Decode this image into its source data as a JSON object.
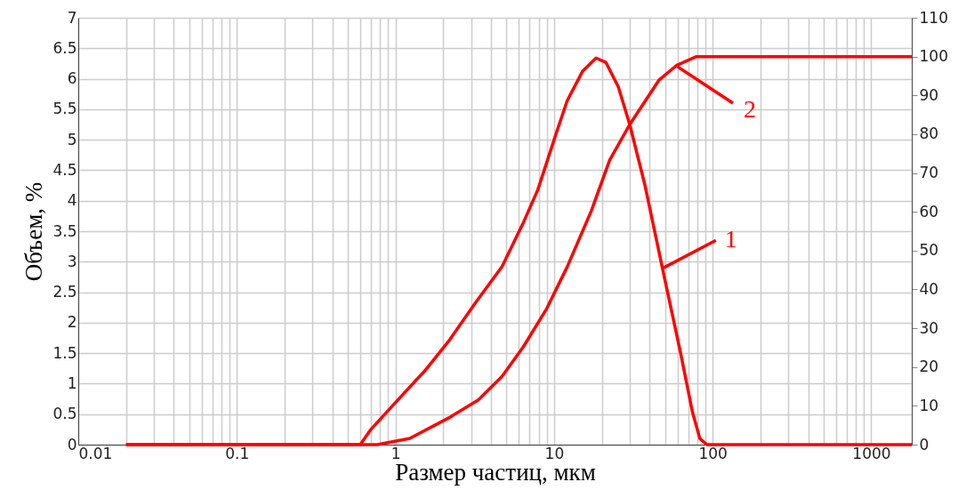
{
  "chart_data": {
    "type": "line",
    "xlabel": "Размер частиц, мкм",
    "ylabel": "Объем, %",
    "log": "x",
    "grid": true,
    "marker": "none",
    "line_style": "solid",
    "xlim": [
      0.01,
      1800
    ],
    "xticks": [
      0.01,
      {
        "value": 0.02,
        "label": null
      },
      {
        "value": 0.03,
        "label": null
      },
      {
        "value": 0.04,
        "label": null
      },
      {
        "value": 0.05,
        "label": null
      },
      {
        "value": 0.06,
        "label": null
      },
      {
        "value": 0.07,
        "label": null
      },
      {
        "value": 0.08,
        "label": null
      },
      {
        "value": 0.09,
        "label": null
      },
      0.1,
      {
        "value": 0.2,
        "label": null
      },
      {
        "value": 0.3,
        "label": null
      },
      {
        "value": 0.4,
        "label": null
      },
      {
        "value": 0.5,
        "label": null
      },
      {
        "value": 0.6,
        "label": null
      },
      {
        "value": 0.7,
        "label": null
      },
      {
        "value": 0.8,
        "label": null
      },
      {
        "value": 0.9,
        "label": null
      },
      1,
      {
        "value": 2,
        "label": null
      },
      {
        "value": 3,
        "label": null
      },
      {
        "value": 4,
        "label": null
      },
      {
        "value": 5,
        "label": null
      },
      {
        "value": 6,
        "label": null
      },
      {
        "value": 7,
        "label": null
      },
      {
        "value": 8,
        "label": null
      },
      {
        "value": 9,
        "label": null
      },
      10,
      {
        "value": 20,
        "label": null
      },
      {
        "value": 30,
        "label": null
      },
      {
        "value": 40,
        "label": null
      },
      {
        "value": 50,
        "label": null
      },
      {
        "value": 60,
        "label": null
      },
      {
        "value": 70,
        "label": null
      },
      {
        "value": 80,
        "label": null
      },
      {
        "value": 90,
        "label": null
      },
      100,
      {
        "value": 200,
        "label": null
      },
      {
        "value": 300,
        "label": null
      },
      {
        "value": 400,
        "label": null
      },
      {
        "value": 500,
        "label": null
      },
      {
        "value": 600,
        "label": null
      },
      {
        "value": 700,
        "label": null
      },
      {
        "value": 800,
        "label": null
      },
      {
        "value": 900,
        "label": null
      },
      1000
    ],
    "ylim": [
      0,
      7
    ],
    "yticks": [
      0,
      0.5,
      1,
      1.5,
      2,
      2.5,
      3,
      3.5,
      4,
      4.5,
      5,
      5.5,
      6,
      6.5,
      7
    ],
    "y2lim": [
      0,
      110
    ],
    "y2ticks": [
      0,
      10,
      20,
      30,
      40,
      50,
      60,
      70,
      80,
      90,
      100,
      110
    ],
    "series": [
      {
        "color": "#ff0000",
        "x": [
          0.02,
          0.6,
          0.7,
          1,
          1.53,
          2.17,
          3.2,
          4.7,
          6.4,
          7.9,
          10.3,
          12.1,
          15.1,
          18.4,
          21.2,
          25.4,
          30,
          37.3,
          49,
          62.8,
          74.5,
          83,
          92,
          1800
        ],
        "values": [
          0,
          0,
          0.25,
          0.69,
          1.21,
          1.7,
          2.33,
          2.92,
          3.64,
          4.18,
          5.1,
          5.64,
          6.12,
          6.34,
          6.27,
          5.87,
          5.25,
          4.27,
          2.81,
          1.5,
          0.54,
          0.1,
          0,
          0
        ]
      },
      {
        "color": "#ff0000",
        "axis": "y2",
        "x": [
          0.02,
          0.77,
          1.23,
          2.17,
          3.33,
          4.7,
          6.4,
          9,
          12.1,
          17.2,
          22.4,
          30,
          46,
          59.5,
          79,
          1800
        ],
        "values": [
          0,
          0,
          1.6,
          6.9,
          11.5,
          17.6,
          25.2,
          35.1,
          45.8,
          60.3,
          73.3,
          82.5,
          94,
          97.8,
          100,
          100
        ]
      }
    ],
    "annotations": [
      {
        "text": "1",
        "x": 49,
        "y": 2.9
      },
      {
        "text": "2",
        "x": 60,
        "y": 6.2
      }
    ]
  }
}
